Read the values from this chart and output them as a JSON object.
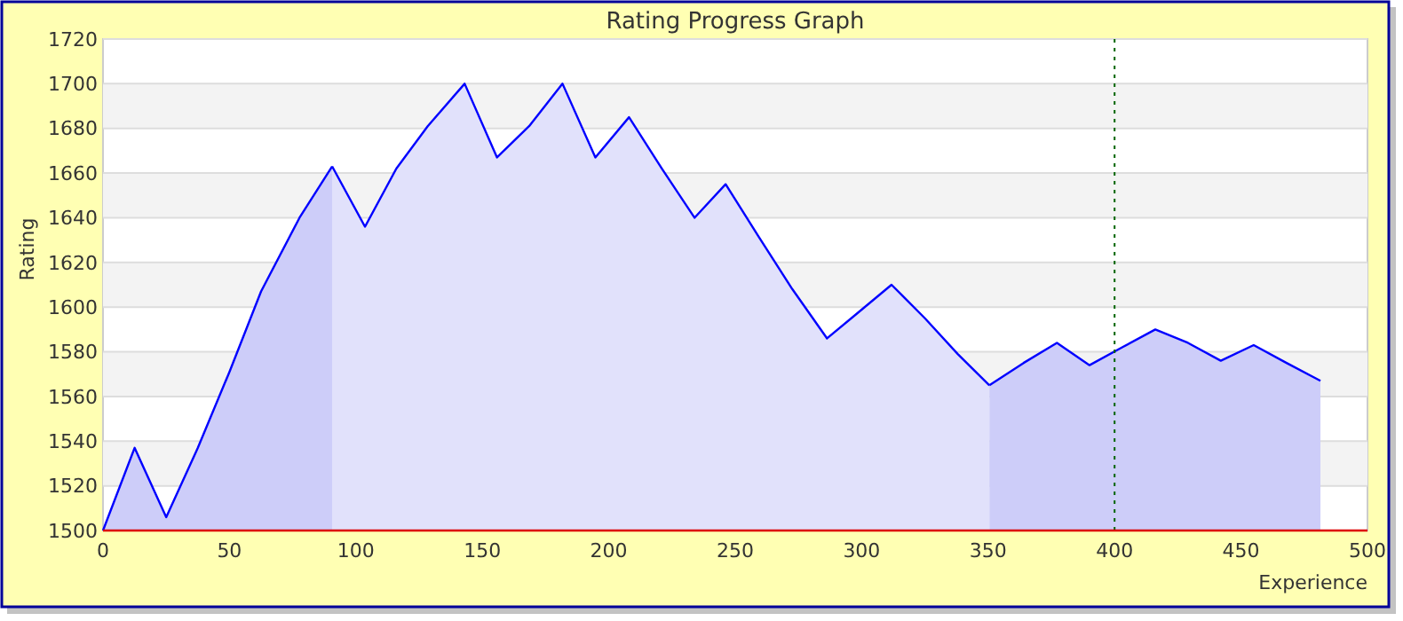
{
  "chart_data": {
    "type": "area",
    "title": "Rating Progress Graph",
    "xlabel": "Experience",
    "ylabel": "Rating",
    "xlim": [
      0,
      500
    ],
    "xticks": [
      0,
      50,
      100,
      150,
      200,
      250,
      300,
      350,
      400,
      450,
      500
    ],
    "ylim": [
      1500,
      1720
    ],
    "yticks": [
      1500,
      1520,
      1540,
      1560,
      1580,
      1600,
      1620,
      1640,
      1660,
      1680,
      1700,
      1720
    ],
    "grid": "y",
    "series": [
      {
        "color": "#cdcdf9",
        "x": [
          0,
          12.5,
          25,
          37.5,
          50,
          62.5,
          77.7,
          90.6
        ],
        "values": [
          1500,
          1537,
          1506,
          1537,
          1571,
          1607,
          1640,
          1663
        ]
      },
      {
        "color": "#e1e1fb",
        "x": [
          90.6,
          103.6,
          116,
          128.4,
          143,
          155.8,
          168.5,
          181.7,
          194.7,
          208,
          221,
          233.9,
          246.2,
          259,
          272.6,
          286.3,
          298,
          311.8,
          325,
          338,
          350.5
        ],
        "values": [
          1663,
          1636,
          1662,
          1681,
          1700,
          1667,
          1681,
          1700,
          1667,
          1685,
          1662,
          1640,
          1655,
          1632,
          1608,
          1586,
          1597,
          1610,
          1595,
          1579,
          1565
        ]
      },
      {
        "color": "#cdcdf9",
        "x": [
          350.5,
          364,
          377.2,
          390.1,
          403,
          416.1,
          429,
          442,
          455,
          468,
          481.4
        ],
        "values": [
          1565,
          1575,
          1584,
          1574,
          1582,
          1590,
          1584,
          1576,
          1583,
          1575,
          1567
        ]
      }
    ],
    "ref_lines": [
      {
        "axis": "x",
        "value": 400,
        "color": "#006400",
        "line_style": "dotted"
      }
    ]
  }
}
